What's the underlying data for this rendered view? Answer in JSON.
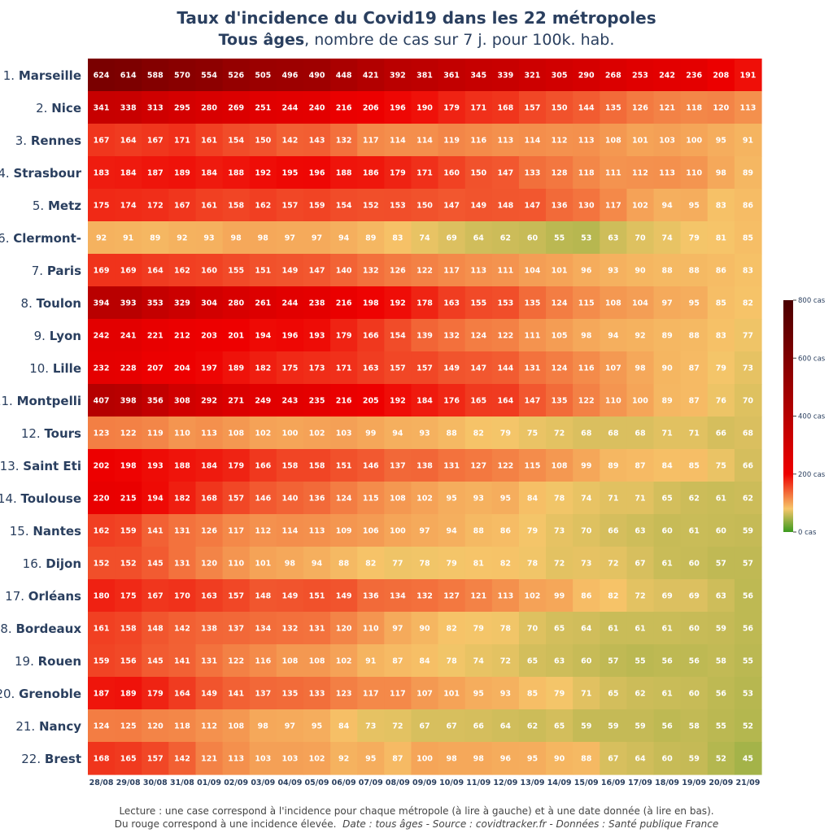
{
  "title": "Taux d'incidence du Covid19 dans les 22 métropoles",
  "subtitle_bold": "Tous âges",
  "subtitle_rest": ", nombre de cas sur 7 j. pour 100k. hab.",
  "footer_line1": "Lecture : une case correspond à l'incidence pour chaque métropole (à lire à gauche) et à une date donnée (à lire en bas).",
  "footer_line2_plain": "Du rouge correspond à une incidence élevée.",
  "footer_line2_italic": "Date : tous âges - Source : covidtracker.fr - Données : Santé publique France",
  "colors": {
    "title": "#2a3f5f",
    "tick": "#2a3f5f",
    "cell_text": "#ffffff"
  },
  "chart_data": {
    "type": "heatmap",
    "colorscale": [
      [
        0,
        "#3a9a1e"
      ],
      [
        0.1,
        "#f6c66a"
      ],
      [
        0.25,
        "#ee0000"
      ],
      [
        1,
        "#4a0000"
      ]
    ],
    "zmin": 0,
    "zmax": 800,
    "colorbar_ticks": [
      {
        "value": 800,
        "label": "800 cas"
      },
      {
        "value": 600,
        "label": "600 cas"
      },
      {
        "value": 400,
        "label": "400 cas"
      },
      {
        "value": 200,
        "label": "200 cas"
      },
      {
        "value": 0,
        "label": "0 cas"
      }
    ],
    "x": [
      "28/08",
      "29/08",
      "30/08",
      "31/08",
      "01/09",
      "02/09",
      "03/09",
      "04/09",
      "05/09",
      "06/09",
      "07/09",
      "08/09",
      "09/09",
      "10/09",
      "11/09",
      "12/09",
      "13/09",
      "14/09",
      "15/09",
      "16/09",
      "17/09",
      "18/09",
      "19/09",
      "20/09",
      "21/09"
    ],
    "y": [
      {
        "rank": "1.",
        "name": "Marseille"
      },
      {
        "rank": "2.",
        "name": "Nice"
      },
      {
        "rank": "3.",
        "name": "Rennes"
      },
      {
        "rank": "4.",
        "name": "Strasbour"
      },
      {
        "rank": "5.",
        "name": "Metz"
      },
      {
        "rank": "6.",
        "name": "Clermont-"
      },
      {
        "rank": "7.",
        "name": "Paris"
      },
      {
        "rank": "8.",
        "name": "Toulon"
      },
      {
        "rank": "9.",
        "name": "Lyon"
      },
      {
        "rank": "10.",
        "name": "Lille"
      },
      {
        "rank": "11.",
        "name": "Montpelli"
      },
      {
        "rank": "12.",
        "name": "Tours"
      },
      {
        "rank": "13.",
        "name": "Saint Eti"
      },
      {
        "rank": "14.",
        "name": "Toulouse"
      },
      {
        "rank": "15.",
        "name": "Nantes"
      },
      {
        "rank": "16.",
        "name": "Dijon"
      },
      {
        "rank": "17.",
        "name": "Orléans"
      },
      {
        "rank": "18.",
        "name": "Bordeaux"
      },
      {
        "rank": "19.",
        "name": "Rouen"
      },
      {
        "rank": "20.",
        "name": "Grenoble"
      },
      {
        "rank": "21.",
        "name": "Nancy"
      },
      {
        "rank": "22.",
        "name": "Brest"
      }
    ],
    "z": [
      [
        624,
        614,
        588,
        570,
        554,
        526,
        505,
        496,
        490,
        448,
        421,
        392,
        381,
        361,
        345,
        339,
        321,
        305,
        290,
        268,
        253,
        242,
        236,
        208,
        191
      ],
      [
        341,
        338,
        313,
        295,
        280,
        269,
        251,
        244,
        240,
        216,
        206,
        196,
        190,
        179,
        171,
        168,
        157,
        150,
        144,
        135,
        126,
        121,
        118,
        120,
        113
      ],
      [
        167,
        164,
        167,
        171,
        161,
        154,
        150,
        142,
        143,
        132,
        117,
        114,
        114,
        119,
        116,
        113,
        114,
        112,
        113,
        108,
        101,
        103,
        100,
        95,
        91
      ],
      [
        183,
        184,
        187,
        189,
        184,
        188,
        192,
        195,
        196,
        188,
        186,
        179,
        171,
        160,
        150,
        147,
        133,
        128,
        118,
        111,
        112,
        113,
        110,
        98,
        89
      ],
      [
        175,
        174,
        172,
        167,
        161,
        158,
        162,
        157,
        159,
        154,
        152,
        153,
        150,
        147,
        149,
        148,
        147,
        136,
        130,
        117,
        102,
        94,
        95,
        83,
        86
      ],
      [
        92,
        91,
        89,
        92,
        93,
        98,
        98,
        97,
        97,
        94,
        89,
        83,
        74,
        69,
        64,
        62,
        60,
        55,
        53,
        63,
        70,
        74,
        79,
        81,
        85
      ],
      [
        169,
        169,
        164,
        162,
        160,
        155,
        151,
        149,
        147,
        140,
        132,
        126,
        122,
        117,
        113,
        111,
        104,
        101,
        96,
        93,
        90,
        88,
        88,
        86,
        83
      ],
      [
        394,
        393,
        353,
        329,
        304,
        280,
        261,
        244,
        238,
        216,
        198,
        192,
        178,
        163,
        155,
        153,
        135,
        124,
        115,
        108,
        104,
        97,
        95,
        85,
        82
      ],
      [
        242,
        241,
        221,
        212,
        203,
        201,
        194,
        196,
        193,
        179,
        166,
        154,
        139,
        132,
        124,
        122,
        111,
        105,
        98,
        94,
        92,
        89,
        88,
        83,
        77
      ],
      [
        232,
        228,
        207,
        204,
        197,
        189,
        182,
        175,
        173,
        171,
        163,
        157,
        157,
        149,
        147,
        144,
        131,
        124,
        116,
        107,
        98,
        90,
        87,
        79,
        73
      ],
      [
        407,
        398,
        356,
        308,
        292,
        271,
        249,
        243,
        235,
        216,
        205,
        192,
        184,
        176,
        165,
        164,
        147,
        135,
        122,
        110,
        100,
        89,
        87,
        76,
        70
      ],
      [
        123,
        122,
        119,
        110,
        113,
        108,
        102,
        100,
        102,
        103,
        99,
        94,
        93,
        88,
        82,
        79,
        75,
        72,
        68,
        68,
        68,
        71,
        71,
        66,
        68
      ],
      [
        202,
        198,
        193,
        188,
        184,
        179,
        166,
        158,
        158,
        151,
        146,
        137,
        138,
        131,
        127,
        122,
        115,
        108,
        99,
        89,
        87,
        84,
        85,
        75,
        66
      ],
      [
        220,
        215,
        194,
        182,
        168,
        157,
        146,
        140,
        136,
        124,
        115,
        108,
        102,
        95,
        93,
        95,
        84,
        78,
        74,
        71,
        71,
        65,
        62,
        61,
        62
      ],
      [
        162,
        159,
        141,
        131,
        126,
        117,
        112,
        114,
        113,
        109,
        106,
        100,
        97,
        94,
        88,
        86,
        79,
        73,
        70,
        66,
        63,
        60,
        61,
        60,
        59
      ],
      [
        152,
        152,
        145,
        131,
        120,
        110,
        101,
        98,
        94,
        88,
        82,
        77,
        78,
        79,
        81,
        82,
        78,
        72,
        73,
        72,
        67,
        61,
        60,
        57,
        57
      ],
      [
        180,
        175,
        167,
        170,
        163,
        157,
        148,
        149,
        151,
        149,
        136,
        134,
        132,
        127,
        121,
        113,
        102,
        99,
        86,
        82,
        72,
        69,
        69,
        63,
        56
      ],
      [
        161,
        158,
        148,
        142,
        138,
        137,
        134,
        132,
        131,
        120,
        110,
        97,
        90,
        82,
        79,
        78,
        70,
        65,
        64,
        61,
        61,
        61,
        60,
        59,
        56
      ],
      [
        159,
        156,
        145,
        141,
        131,
        122,
        116,
        108,
        108,
        102,
        91,
        87,
        84,
        78,
        74,
        72,
        65,
        63,
        60,
        57,
        55,
        56,
        56,
        58,
        55
      ],
      [
        187,
        189,
        179,
        164,
        149,
        141,
        137,
        135,
        133,
        123,
        117,
        117,
        107,
        101,
        95,
        93,
        85,
        79,
        71,
        65,
        62,
        61,
        60,
        56,
        53
      ],
      [
        124,
        125,
        120,
        118,
        112,
        108,
        98,
        97,
        95,
        84,
        73,
        72,
        67,
        67,
        66,
        64,
        62,
        65,
        59,
        59,
        59,
        56,
        58,
        55,
        52
      ],
      [
        168,
        165,
        157,
        142,
        121,
        113,
        103,
        103,
        102,
        92,
        95,
        87,
        100,
        98,
        98,
        96,
        95,
        90,
        88,
        67,
        64,
        60,
        59,
        52,
        45
      ]
    ]
  }
}
